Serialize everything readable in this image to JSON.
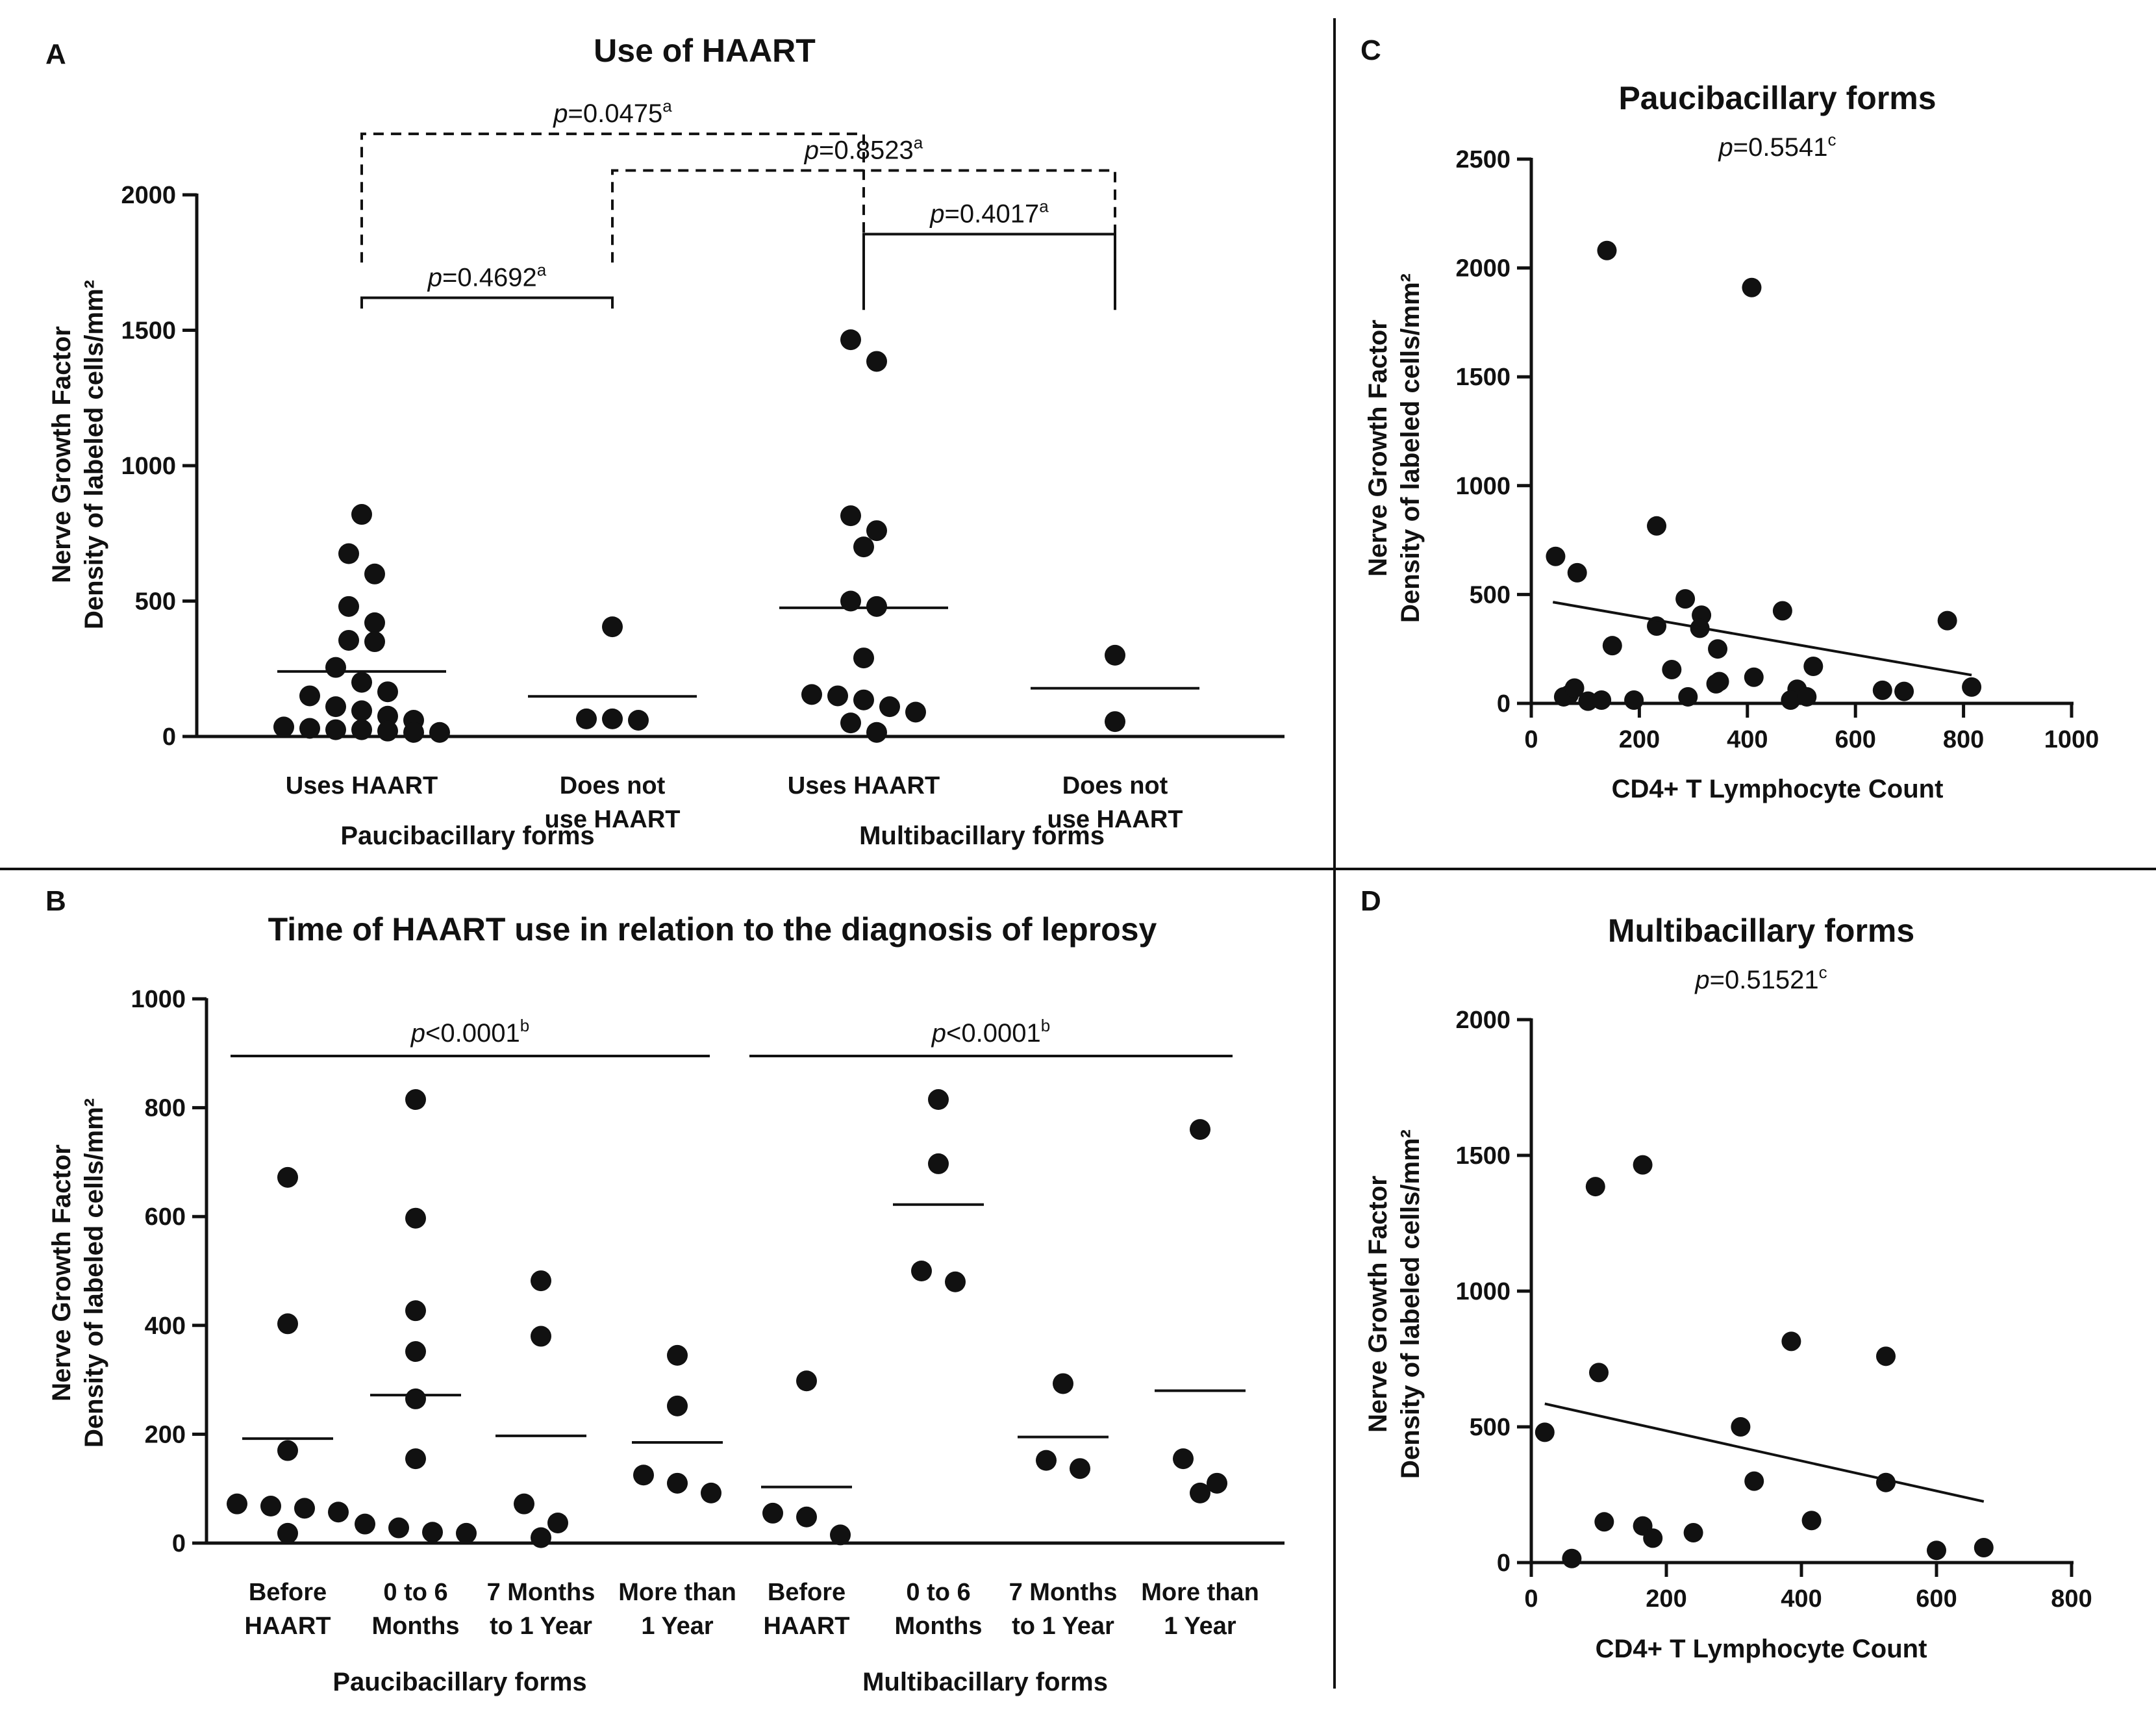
{
  "panels": {
    "A": {
      "letter": "A",
      "title": "Use of HAART"
    },
    "B": {
      "letter": "B",
      "title": "Time of HAART use in relation to the diagnosis of leprosy"
    },
    "C": {
      "letter": "C",
      "title": "Paucibacillary forms"
    },
    "D": {
      "letter": "D",
      "title": "Multibacillary forms"
    }
  },
  "ylabel_line1": "Nerve Growth Factor",
  "ylabel_line2": "Density of labeled cells/mm²",
  "chart_data": [
    {
      "panel": "A",
      "type": "scatter",
      "title": "Use of HAART",
      "ylabel": "Nerve Growth Factor Density of labeled cells/mm²",
      "ylim": [
        0,
        2000
      ],
      "yticks": [
        0,
        500,
        1000,
        1500,
        2000
      ],
      "groups": [
        "Paucibacillary forms",
        "Multibacillary forms"
      ],
      "categories": [
        {
          "line1": "Uses HAART",
          "line2": "",
          "group": 0,
          "mean": 240,
          "values": [
            820,
            675,
            600,
            480,
            420,
            355,
            350,
            255,
            200,
            165,
            150,
            110,
            95,
            75,
            60,
            35,
            25,
            20,
            15,
            15,
            30,
            25
          ]
        },
        {
          "line1": "Does not",
          "line2": "use HAART",
          "group": 0,
          "mean": 148,
          "values": [
            405,
            60,
            65,
            65
          ]
        },
        {
          "line1": "Uses HAART",
          "line2": "",
          "group": 1,
          "mean": 475,
          "values": [
            1465,
            1385,
            815,
            760,
            700,
            500,
            480,
            290,
            155,
            150,
            135,
            110,
            90,
            50,
            15
          ]
        },
        {
          "line1": "Does not",
          "line2": "use HAART",
          "group": 1,
          "mean": 178,
          "values": [
            300,
            55
          ]
        }
      ],
      "comparisons": [
        {
          "p": "p=0.4692",
          "sup": "a",
          "from": 0,
          "to": 1,
          "y": 1620,
          "leg_bottom": 1580,
          "style": "solid"
        },
        {
          "p": "p=0.4017",
          "sup": "a",
          "from": 2,
          "to": 3,
          "y": 1855,
          "leg_bottom": 1575,
          "style": "solid"
        },
        {
          "p": "p=0.0475",
          "sup": "a",
          "from": 0,
          "to": 2,
          "y": 2225,
          "leg_bottom": 1750,
          "style": "dashed"
        },
        {
          "p": "p=0.8523",
          "sup": "a",
          "from": 1,
          "to": 3,
          "y": 2090,
          "leg_bottom": 1750,
          "style": "dashed"
        }
      ]
    },
    {
      "panel": "B",
      "type": "scatter",
      "title": "Time of HAART use in relation to the diagnosis of leprosy",
      "ylabel": "Nerve Growth Factor Density of labeled cells/mm²",
      "ylim": [
        0,
        1000
      ],
      "yticks": [
        0,
        200,
        400,
        600,
        800,
        1000
      ],
      "groups": [
        "Paucibacillary forms",
        "Multibacillary forms"
      ],
      "categories": [
        {
          "line1": "Before",
          "line2": "HAART",
          "group": 0,
          "mean": 192,
          "values": [
            672,
            403,
            170,
            72,
            64,
            68,
            57,
            18
          ]
        },
        {
          "line1": "0 to 6",
          "line2": "Months",
          "group": 0,
          "mean": 272,
          "values": [
            815,
            597,
            427,
            352,
            265,
            155,
            35,
            28,
            20,
            18
          ]
        },
        {
          "line1": "7 Months",
          "line2": "to 1 Year",
          "group": 0,
          "mean": 197,
          "values": [
            482,
            380,
            72,
            37,
            10
          ]
        },
        {
          "line1": "More than",
          "line2": "1 Year",
          "group": 0,
          "mean": 185,
          "values": [
            345,
            252,
            125,
            110,
            92
          ]
        },
        {
          "line1": "Before",
          "line2": "HAART",
          "group": 1,
          "mean": 103,
          "values": [
            298,
            55,
            48,
            15
          ]
        },
        {
          "line1": "0 to 6",
          "line2": "Months",
          "group": 1,
          "mean": 622,
          "values": [
            815,
            697,
            500,
            480
          ]
        },
        {
          "line1": "7 Months",
          "line2": "to 1 Year",
          "group": 1,
          "mean": 195,
          "values": [
            293,
            152,
            137
          ]
        },
        {
          "line1": "More than",
          "line2": "1 Year",
          "group": 1,
          "mean": 280,
          "values": [
            760,
            155,
            110,
            92
          ]
        }
      ],
      "comparisons": [
        {
          "p": "p<0.0001",
          "sup": "b",
          "from": 0,
          "to": 3,
          "y": 895
        },
        {
          "p": "p<0.0001",
          "sup": "b",
          "from": 4,
          "to": 7,
          "y": 895
        }
      ]
    },
    {
      "panel": "C",
      "type": "scatter",
      "title": "Paucibacillary forms",
      "p": "p=0.5541",
      "sup": "c",
      "xlabel": "CD4+ T Lymphocyte Count",
      "ylabel": "Nerve Growth Factor Density of labeled cells/mm²",
      "xlim": [
        0,
        1000
      ],
      "ylim": [
        0,
        2500
      ],
      "xticks": [
        0,
        200,
        400,
        600,
        800,
        1000
      ],
      "yticks": [
        0,
        500,
        1000,
        1500,
        2000,
        2500
      ],
      "points": [
        [
          45,
          675
        ],
        [
          85,
          600
        ],
        [
          140,
          2080
        ],
        [
          408,
          1910
        ],
        [
          232,
          815
        ],
        [
          285,
          480
        ],
        [
          315,
          405
        ],
        [
          465,
          425
        ],
        [
          312,
          345
        ],
        [
          232,
          355
        ],
        [
          345,
          250
        ],
        [
          770,
          380
        ],
        [
          150,
          265
        ],
        [
          412,
          120
        ],
        [
          348,
          100
        ],
        [
          342,
          90
        ],
        [
          522,
          170
        ],
        [
          492,
          65
        ],
        [
          650,
          60
        ],
        [
          690,
          55
        ],
        [
          815,
          75
        ],
        [
          70,
          40
        ],
        [
          60,
          30
        ],
        [
          80,
          70
        ],
        [
          105,
          10
        ],
        [
          130,
          15
        ],
        [
          190,
          15
        ],
        [
          260,
          155
        ],
        [
          290,
          30
        ],
        [
          480,
          15
        ],
        [
          510,
          30
        ]
      ],
      "fit": {
        "x": [
          40,
          815
        ],
        "y": [
          465,
          130
        ]
      }
    },
    {
      "panel": "D",
      "type": "scatter",
      "title": "Multibacillary forms",
      "p": "p=0.51521",
      "sup": "c",
      "xlabel": "CD4+ T Lymphocyte Count",
      "ylabel": "Nerve Growth Factor Density of labeled cells/mm²",
      "xlim": [
        0,
        800
      ],
      "ylim": [
        0,
        2000
      ],
      "xticks": [
        0,
        200,
        400,
        600,
        800
      ],
      "yticks": [
        0,
        500,
        1000,
        1500,
        2000
      ],
      "points": [
        [
          95,
          1385
        ],
        [
          165,
          1465
        ],
        [
          100,
          700
        ],
        [
          385,
          815
        ],
        [
          525,
          760
        ],
        [
          20,
          480
        ],
        [
          310,
          500
        ],
        [
          525,
          295
        ],
        [
          330,
          300
        ],
        [
          108,
          150
        ],
        [
          415,
          155
        ],
        [
          165,
          135
        ],
        [
          180,
          90
        ],
        [
          240,
          110
        ],
        [
          60,
          15
        ],
        [
          600,
          45
        ],
        [
          670,
          55
        ]
      ],
      "fit": {
        "x": [
          20,
          670
        ],
        "y": [
          585,
          225
        ]
      }
    }
  ]
}
